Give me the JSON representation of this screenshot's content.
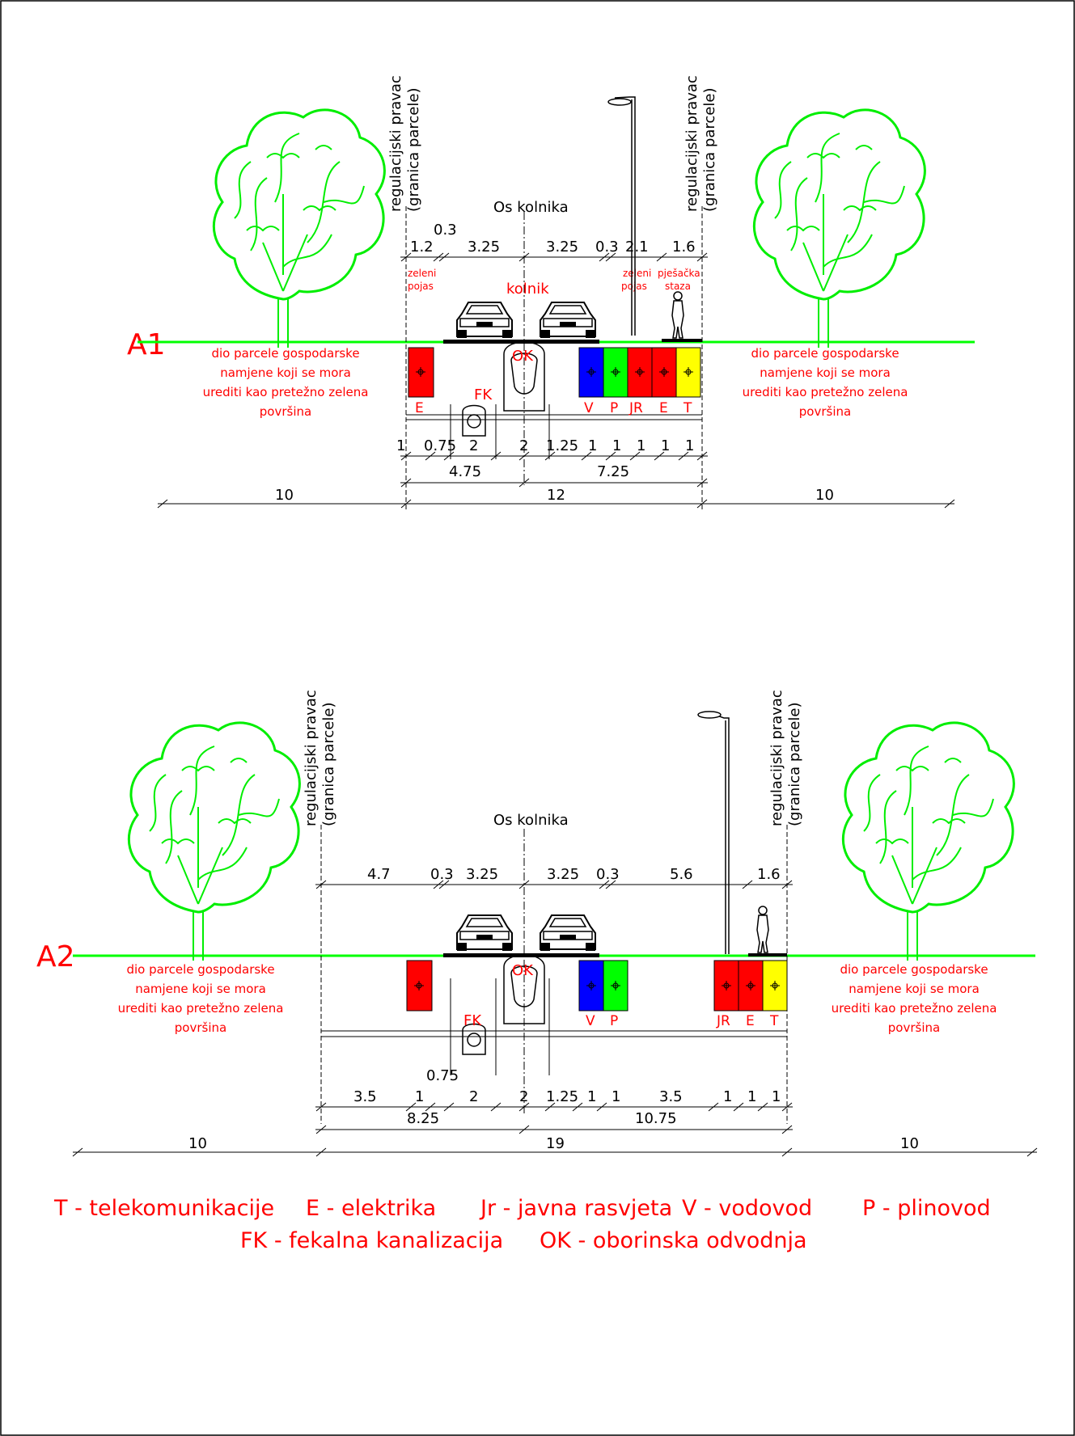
{
  "colors": {
    "ground": "#00ff00",
    "tree": "#00ee00",
    "red_text": "#ff0000",
    "electric": "#ff0000",
    "water": "#0000ff",
    "gas": "#00ff00",
    "telecom": "#ffff00",
    "line": "#000000"
  },
  "section_a1": {
    "id": "A1",
    "regulation_line": [
      "regulacijski pravac",
      "(granica parcele)"
    ],
    "axis_label": "Os kolnika",
    "roadway_label": "kolnik",
    "green_strip_left": [
      "zeleni",
      "pojas"
    ],
    "green_strip_right": [
      "zeleni",
      "pojas"
    ],
    "sidewalk": [
      "pješačka",
      "staza"
    ],
    "parcel_note": [
      "dio parcele gospodarske",
      "namjene koji se mora",
      "urediti kao pretežno zelena",
      "površina"
    ],
    "top_dims": [
      "1.2",
      "0.3",
      "3.25",
      "3.25",
      "0.3",
      "2.1",
      "1.6"
    ],
    "utilities": [
      "E",
      "V",
      "P",
      "JR",
      "E",
      "T"
    ],
    "ok": "OK",
    "fk": "FK",
    "bottom_dims": [
      "1",
      "0.75",
      "2",
      "2",
      "1.25",
      "1",
      "1",
      "1",
      "1",
      "1"
    ],
    "sub_totals": [
      "4.75",
      "7.25"
    ],
    "totals": [
      "10",
      "12",
      "10"
    ]
  },
  "section_a2": {
    "id": "A2",
    "regulation_line": [
      "regulacijski pravac",
      "(granica parcele)"
    ],
    "axis_label": "Os kolnika",
    "parcel_note": [
      "dio parcele gospodarske",
      "namjene koji se mora",
      "urediti kao pretežno zelena",
      "površina"
    ],
    "top_dims": [
      "4.7",
      "0.3",
      "3.25",
      "3.25",
      "0.3",
      "5.6",
      "1.6"
    ],
    "utilities": [
      "V",
      "P",
      "JR",
      "E",
      "T"
    ],
    "ok": "OK",
    "fk": "FK",
    "bottom_dims": [
      "3.5",
      "1",
      "0.75",
      "2",
      "2",
      "1.25",
      "1",
      "1",
      "3.5",
      "1",
      "1",
      "1"
    ],
    "sub_totals": [
      "8.25",
      "10.75"
    ],
    "totals": [
      "10",
      "19",
      "10"
    ]
  },
  "legend": {
    "line1": [
      "T - telekomunikacije",
      "E - elektrika",
      "Jr - javna rasvjeta",
      "V - vodovod",
      "P - plinovod"
    ],
    "line2": [
      "FK - fekalna kanalizacija",
      "OK - oborinska odvodnja"
    ]
  }
}
